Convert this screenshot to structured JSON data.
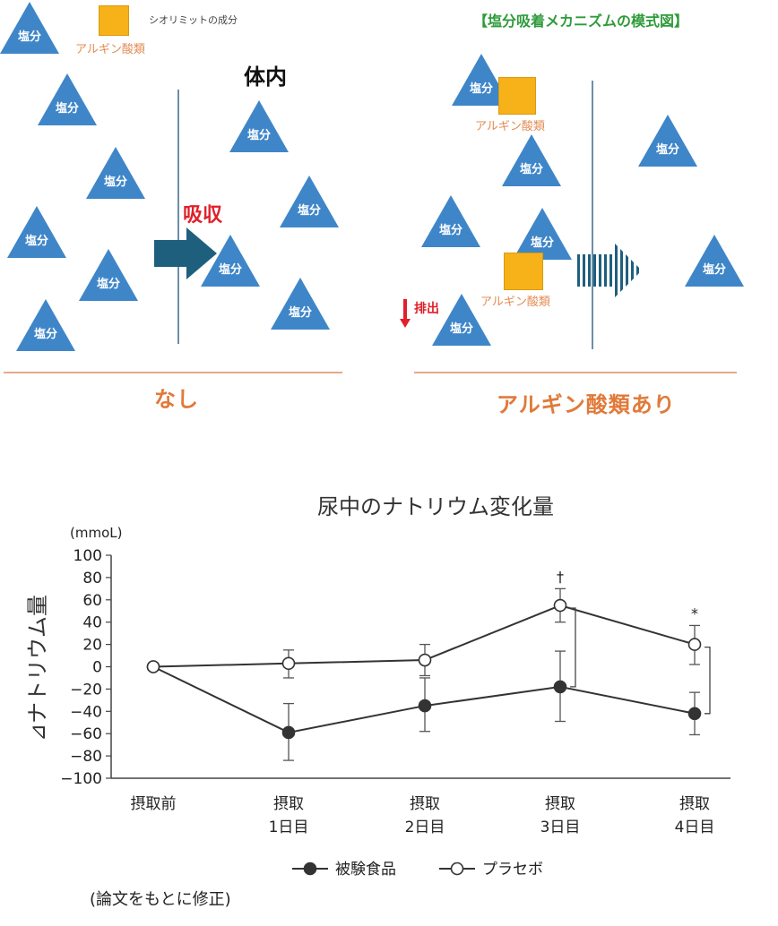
{
  "diagram": {
    "legend_salt_label": "塩分",
    "legend_square_label": "シオリミットの成分",
    "legend_arginate_label": "アルギン酸類",
    "title": "【塩分吸着メカニズムの模式図】",
    "inside_label": "体内",
    "absorb_label": "吸収",
    "excrete_label": "排出",
    "left_caption": "なし",
    "right_caption": "アルギン酸類あり",
    "arginate_label_1": "アルギン酸類",
    "arginate_label_2": "アルギン酸類",
    "colors": {
      "triangle": "#3f86c9",
      "square": "#f7b219",
      "arrow": "#1f5f7e",
      "absorb": "#e0202a",
      "caption": "#e07a3a",
      "title": "#2e9b3a"
    }
  },
  "chart_data": {
    "type": "line",
    "title": "尿中のナトリウム変化量",
    "ylabel": "⊿ナトリウム量",
    "yunit": "(mmoL)",
    "ylim": [
      -100,
      100
    ],
    "yticks": [
      "100",
      "80",
      "60",
      "40",
      "20",
      "0",
      "−20",
      "−40",
      "−60",
      "−80",
      "−100"
    ],
    "categories": [
      {
        "line1": "摂取前",
        "line2": ""
      },
      {
        "line1": "摂取",
        "line2": "1日目"
      },
      {
        "line1": "摂取",
        "line2": "2日目"
      },
      {
        "line1": "摂取",
        "line2": "3日目"
      },
      {
        "line1": "摂取",
        "line2": "4日目"
      }
    ],
    "series": [
      {
        "name": "被験食品",
        "marker": "filled",
        "values": [
          0,
          -59,
          -35,
          -18,
          -42
        ],
        "err_low": [
          0,
          -84,
          -58,
          -49,
          -61
        ],
        "err_high": [
          0,
          -33,
          -10,
          14,
          -23
        ]
      },
      {
        "name": "プラセボ",
        "marker": "open",
        "values": [
          0,
          3,
          6,
          55,
          20
        ],
        "err_low": [
          0,
          -10,
          -8,
          40,
          2
        ],
        "err_high": [
          0,
          15,
          20,
          70,
          37
        ]
      }
    ],
    "annotations": [
      {
        "category_index": 3,
        "label": "†"
      },
      {
        "category_index": 4,
        "label": "*"
      }
    ],
    "source_note": "(論文をもとに修正)"
  }
}
